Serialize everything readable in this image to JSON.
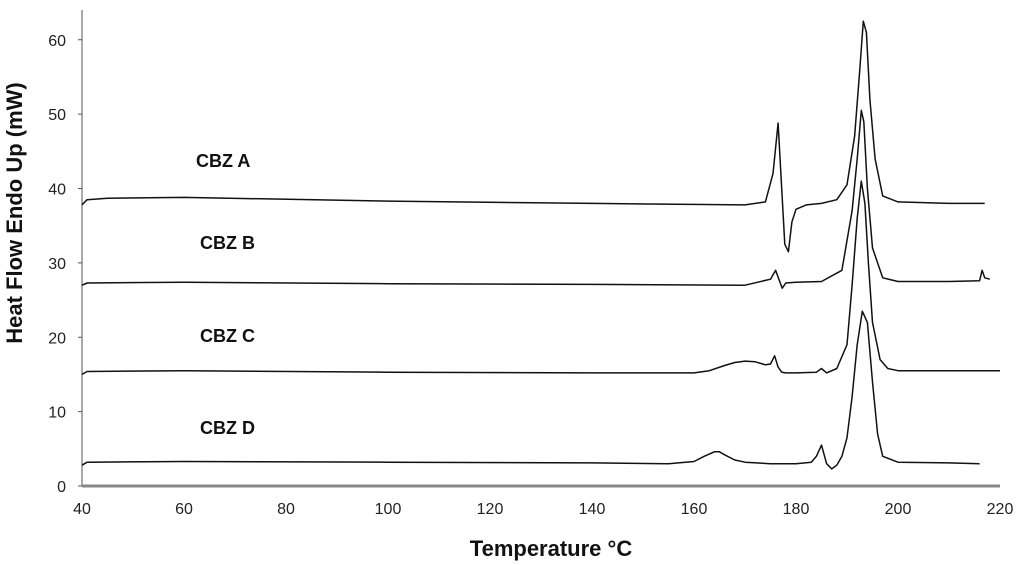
{
  "chart_data": {
    "type": "line",
    "title": "",
    "xlabel": "Temperature °C",
    "ylabel": "Heat Flow Endo Up (mW)",
    "xlim": [
      40,
      220
    ],
    "ylim": [
      0,
      64
    ],
    "xticks": [
      40,
      60,
      80,
      100,
      120,
      140,
      160,
      180,
      200,
      220
    ],
    "yticks": [
      0,
      10,
      20,
      30,
      40,
      50,
      60
    ],
    "grid": false,
    "legend": "none",
    "series": [
      {
        "name": "CBZ A",
        "x": [
          40,
          41,
          45,
          60,
          100,
          140,
          170,
          174,
          175.5,
          176.5,
          177.2,
          177.8,
          178.5,
          179.2,
          180,
          182,
          185,
          188,
          190,
          191.5,
          192.5,
          193.2,
          193.8,
          194.5,
          195.5,
          197,
          200,
          210,
          217
        ],
        "y": [
          37.8,
          38.5,
          38.7,
          38.8,
          38.3,
          38.0,
          37.8,
          38.2,
          42.0,
          48.8,
          40.0,
          32.5,
          31.5,
          35.5,
          37.2,
          37.8,
          38.0,
          38.5,
          40.5,
          47.0,
          56.0,
          62.5,
          61.0,
          52.0,
          44.0,
          39.0,
          38.2,
          38.0,
          38.0
        ]
      },
      {
        "name": "CBZ B",
        "x": [
          40,
          41,
          60,
          100,
          140,
          170,
          175,
          176,
          176.8,
          177.3,
          178,
          180,
          185,
          189,
          191,
          192,
          192.8,
          193.3,
          194,
          195,
          197,
          200,
          210,
          216,
          216.5,
          217,
          218
        ],
        "y": [
          27.0,
          27.3,
          27.4,
          27.2,
          27.1,
          27.0,
          27.8,
          29.0,
          27.5,
          26.6,
          27.3,
          27.4,
          27.5,
          29.0,
          37.0,
          44.0,
          50.5,
          49.0,
          40.0,
          32.0,
          28.0,
          27.5,
          27.5,
          27.6,
          29.0,
          28.0,
          27.8
        ]
      },
      {
        "name": "CBZ C",
        "x": [
          40,
          41,
          60,
          100,
          140,
          160,
          163,
          166,
          168,
          170,
          172,
          174,
          175,
          175.8,
          176.5,
          177.2,
          178,
          180,
          184,
          185,
          186,
          188,
          190,
          191,
          192,
          192.8,
          193.5,
          194.2,
          195,
          196.5,
          198,
          200,
          210,
          220
        ],
        "y": [
          15.0,
          15.4,
          15.5,
          15.3,
          15.2,
          15.2,
          15.5,
          16.2,
          16.6,
          16.8,
          16.7,
          16.3,
          16.4,
          17.5,
          16.0,
          15.3,
          15.2,
          15.2,
          15.3,
          15.8,
          15.2,
          15.8,
          19.0,
          27.0,
          36.0,
          41.0,
          38.0,
          30.0,
          22.0,
          17.0,
          15.8,
          15.5,
          15.5,
          15.5
        ]
      },
      {
        "name": "CBZ D",
        "x": [
          40,
          41,
          60,
          100,
          140,
          155,
          160,
          162,
          164,
          165,
          166,
          168,
          170,
          175,
          180,
          183,
          184,
          185,
          186,
          187,
          188,
          189,
          190,
          191,
          192,
          193,
          194,
          195,
          196,
          197,
          200,
          210,
          216
        ],
        "y": [
          2.8,
          3.2,
          3.3,
          3.2,
          3.1,
          3.0,
          3.3,
          4.0,
          4.6,
          4.6,
          4.2,
          3.5,
          3.2,
          3.0,
          3.0,
          3.2,
          4.0,
          5.5,
          3.0,
          2.3,
          2.8,
          4.0,
          6.5,
          12.0,
          19.0,
          23.5,
          22.0,
          14.0,
          7.0,
          4.0,
          3.2,
          3.1,
          3.0
        ]
      }
    ],
    "annotations": [
      "CBZ A",
      "CBZ B",
      "CBZ C",
      "CBZ D"
    ]
  }
}
